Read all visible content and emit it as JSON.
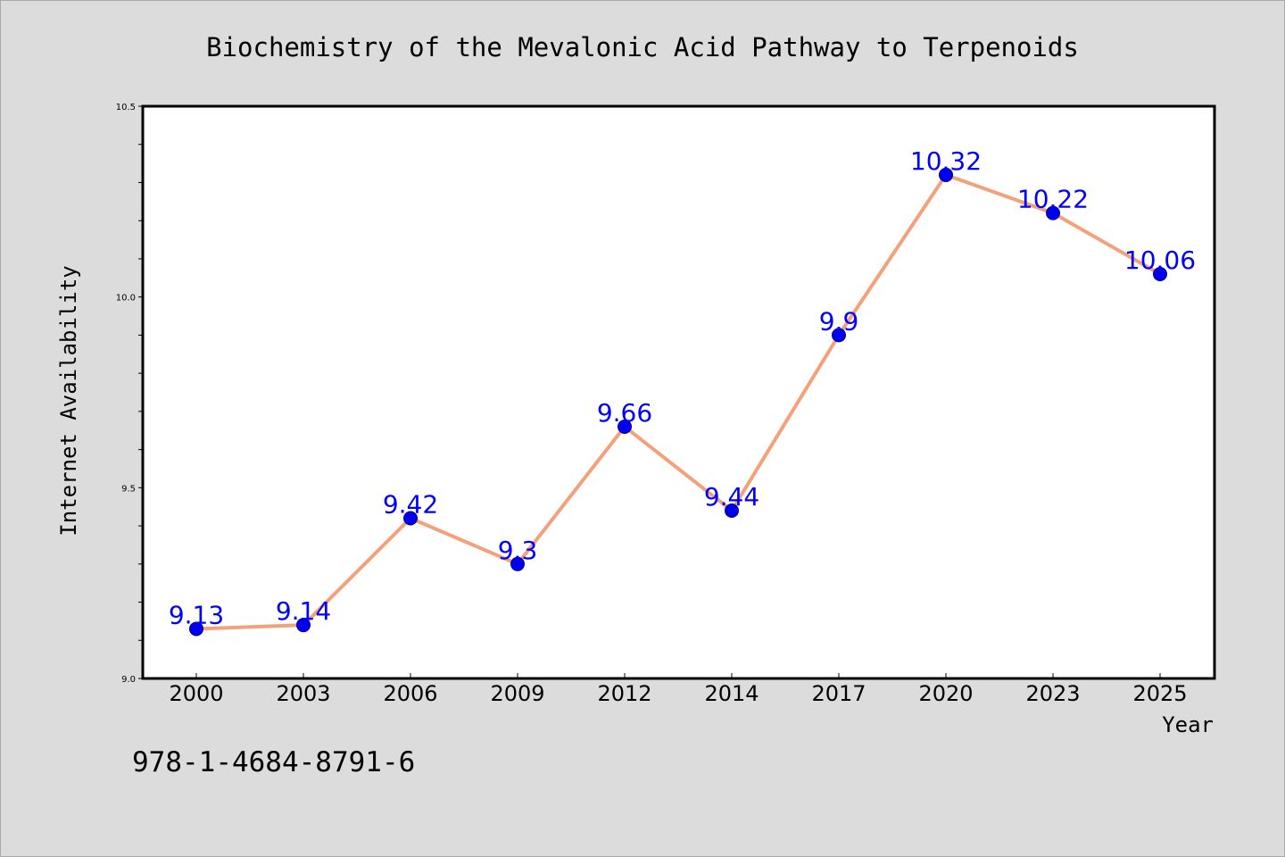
{
  "chart_data": {
    "type": "line",
    "title": "Biochemistry of the Mevalonic Acid Pathway to Terpenoids",
    "xlabel": "Year",
    "ylabel": "Internet Availability",
    "categories": [
      "2000",
      "2003",
      "2006",
      "2009",
      "2012",
      "2014",
      "2017",
      "2020",
      "2023",
      "2025"
    ],
    "series": [
      {
        "values": [
          9.13,
          9.14,
          9.42,
          9.3,
          9.66,
          9.44,
          9.9,
          10.32,
          10.22,
          10.06
        ],
        "data_labels": [
          "9.13",
          "9.14",
          "9.42",
          "9.3",
          "9.66",
          "9.44",
          "9.9",
          "10.32",
          "10.22",
          "10.06"
        ]
      }
    ],
    "ylim": [
      9.0,
      10.5
    ],
    "yticks": [
      9.0,
      9.5,
      10.0,
      10.5
    ],
    "ytick_labels": [
      "9.0",
      "9.5",
      "10.0",
      "10.5"
    ],
    "y_minor_step": 0.1,
    "grid": false,
    "legend": "none",
    "colors": {
      "line": "#f4a07a",
      "marker": "#0000ee",
      "data_label": "#0000ff",
      "plot_background": "#ffffff",
      "figure_background": "#dcdcdc"
    }
  },
  "footer": {
    "isbn": "978-1-4684-8791-6"
  }
}
